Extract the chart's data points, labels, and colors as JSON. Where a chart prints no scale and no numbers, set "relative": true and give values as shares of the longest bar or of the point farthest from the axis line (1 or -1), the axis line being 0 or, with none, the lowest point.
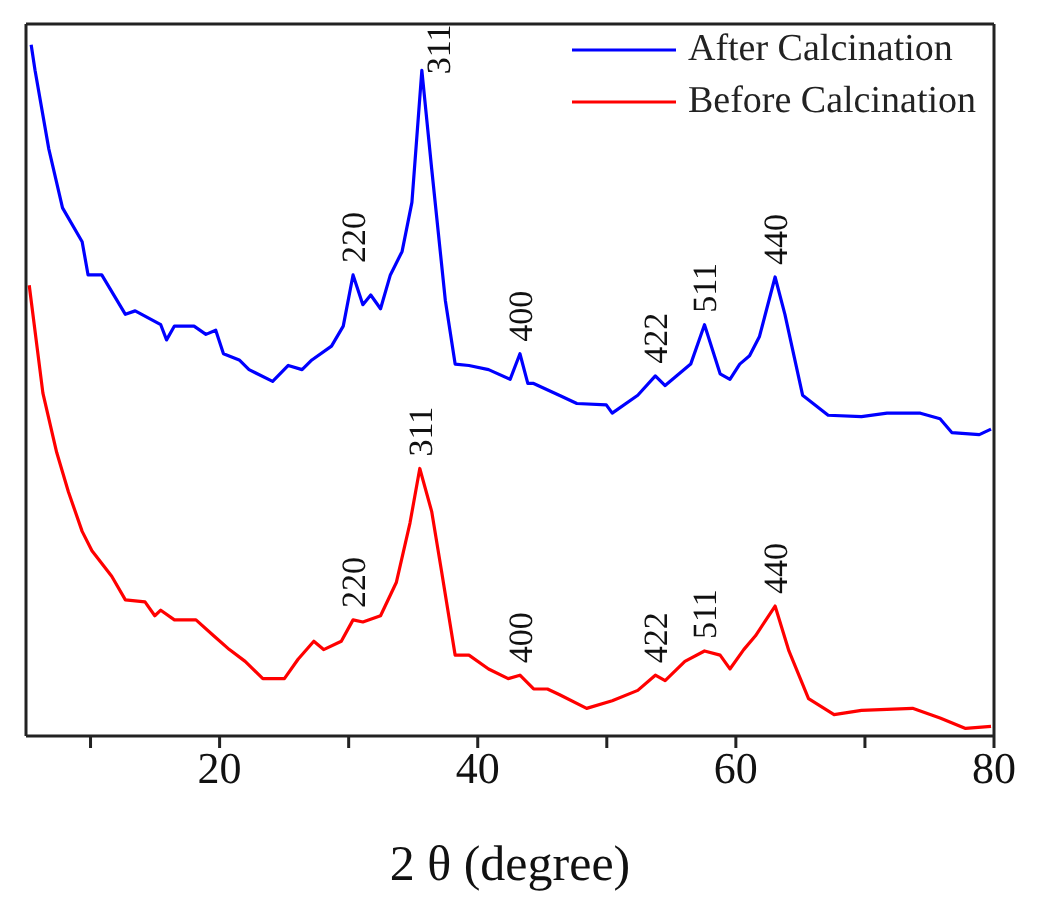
{
  "chart_data": {
    "type": "line",
    "xlabel": "2 θ (degree)",
    "relative": true,
    "legend": "top right",
    "marker": "none",
    "line_style": "solid",
    "xlim": [
      5,
      80
    ],
    "xticks": [
      {
        "value": 10,
        "label": null
      },
      20,
      {
        "value": 30,
        "label": null
      },
      40,
      {
        "value": 50,
        "label": null
      },
      60,
      {
        "value": 70,
        "label": null
      },
      80
    ],
    "series": [
      {
        "name": "After Calcination",
        "color": "#0000ff",
        "x": [
          5.4,
          5.7,
          6.77,
          7.83,
          9.35,
          9.81,
          10.87,
          12.7,
          13.46,
          15.44,
          15.89,
          16.5,
          18.02,
          18.94,
          19.7,
          20.3,
          21.52,
          22.28,
          24.11,
          25.32,
          26.39,
          27.15,
          28.67,
          29.58,
          30.34,
          31.1,
          31.71,
          32.47,
          33.23,
          34.14,
          34.9,
          35.67,
          36.43,
          37.49,
          38.25,
          39.32,
          40.84,
          42.51,
          43.27,
          43.88,
          44.33,
          46.31,
          47.68,
          49.96,
          50.42,
          52.4,
          53.76,
          54.52,
          56.5,
          57.57,
          58.78,
          59.54,
          60.3,
          61.06,
          61.83,
          63.04,
          63.8,
          65.17,
          67.15,
          69.73,
          71.71,
          74.3,
          75.82,
          76.73,
          78.86,
          79.77
        ],
        "values": [
          1.0,
          0.963,
          0.849,
          0.764,
          0.715,
          0.667,
          0.667,
          0.61,
          0.615,
          0.595,
          0.573,
          0.593,
          0.593,
          0.581,
          0.587,
          0.553,
          0.544,
          0.53,
          0.513,
          0.536,
          0.53,
          0.544,
          0.564,
          0.593,
          0.667,
          0.624,
          0.638,
          0.618,
          0.667,
          0.701,
          0.772,
          0.963,
          0.821,
          0.63,
          0.538,
          0.536,
          0.53,
          0.516,
          0.553,
          0.51,
          0.51,
          0.493,
          0.481,
          0.479,
          0.467,
          0.493,
          0.521,
          0.507,
          0.538,
          0.595,
          0.524,
          0.516,
          0.538,
          0.55,
          0.578,
          0.664,
          0.61,
          0.493,
          0.464,
          0.462,
          0.467,
          0.467,
          0.459,
          0.439,
          0.436,
          0.444
        ]
      },
      {
        "name": "Before Calcination",
        "color": "#ff0000",
        "x": [
          5.25,
          6.31,
          7.38,
          8.29,
          9.35,
          10.11,
          11.64,
          12.7,
          14.22,
          14.98,
          15.44,
          16.5,
          18.17,
          19.54,
          20.76,
          21.98,
          23.35,
          25.02,
          26.08,
          27.3,
          28.06,
          29.43,
          30.34,
          31.1,
          32.47,
          33.69,
          34.75,
          35.51,
          36.43,
          37.19,
          38.25,
          39.32,
          40.84,
          42.36,
          43.27,
          44.33,
          45.4,
          46.31,
          48.44,
          50.42,
          52.4,
          53.76,
          54.52,
          56.05,
          57.57,
          58.78,
          59.54,
          60.61,
          61.52,
          63.04,
          64.11,
          65.63,
          67.61,
          69.73,
          73.69,
          75.82,
          77.8,
          79.77
        ],
        "values": [
          0.652,
          0.496,
          0.41,
          0.353,
          0.296,
          0.268,
          0.231,
          0.197,
          0.194,
          0.174,
          0.182,
          0.168,
          0.168,
          0.145,
          0.125,
          0.108,
          0.083,
          0.083,
          0.111,
          0.137,
          0.125,
          0.137,
          0.168,
          0.165,
          0.174,
          0.222,
          0.308,
          0.387,
          0.325,
          0.239,
          0.117,
          0.117,
          0.097,
          0.083,
          0.088,
          0.068,
          0.068,
          0.06,
          0.04,
          0.051,
          0.066,
          0.088,
          0.08,
          0.108,
          0.123,
          0.117,
          0.097,
          0.125,
          0.145,
          0.188,
          0.123,
          0.054,
          0.031,
          0.037,
          0.04,
          0.026,
          0.011,
          0.014
        ]
      }
    ],
    "annotations": [
      {
        "text": "220",
        "x": 30.34,
        "y": 0.667
      },
      {
        "text": "311",
        "x": 35.67,
        "y": 0.963
      },
      {
        "text": "400",
        "x": 43.27,
        "y": 0.553
      },
      {
        "text": "422",
        "x": 53.76,
        "y": 0.521
      },
      {
        "text": "511",
        "x": 57.57,
        "y": 0.595
      },
      {
        "text": "440",
        "x": 63.04,
        "y": 0.664
      },
      {
        "text": "220",
        "x": 30.34,
        "y": 0.168
      },
      {
        "text": "311",
        "x": 35.51,
        "y": 0.387
      },
      {
        "text": "400",
        "x": 43.27,
        "y": 0.088
      },
      {
        "text": "422",
        "x": 53.76,
        "y": 0.088
      },
      {
        "text": "511",
        "x": 57.57,
        "y": 0.123
      },
      {
        "text": "440",
        "x": 63.04,
        "y": 0.188
      }
    ]
  }
}
